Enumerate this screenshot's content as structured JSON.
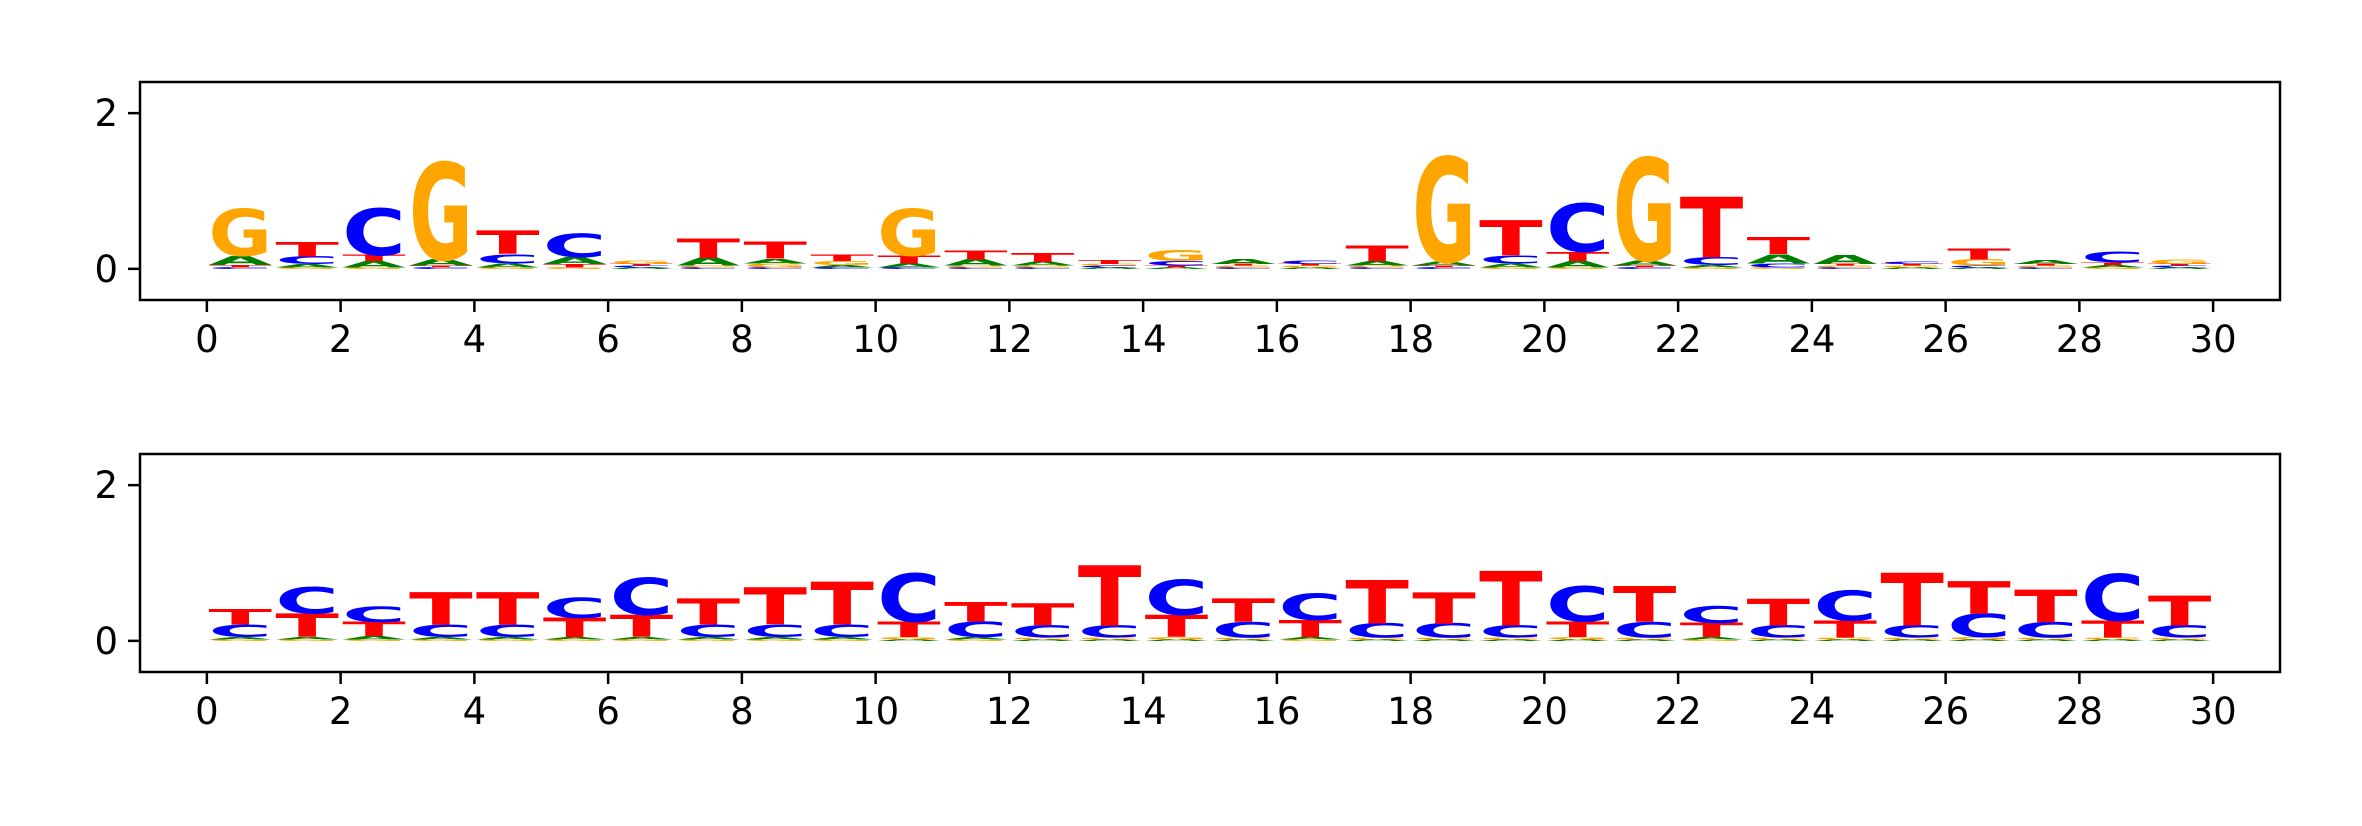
{
  "colors": {
    "A": "#008000",
    "C": "#0000ff",
    "G": "#ffa500",
    "T": "#ff0000"
  },
  "chart_data": [
    {
      "type": "sequence-logo",
      "xlim": [
        -1,
        31
      ],
      "ylim": [
        -0.4,
        2.4
      ],
      "xticks": [
        "0",
        "2",
        "4",
        "6",
        "8",
        "10",
        "12",
        "14",
        "16",
        "18",
        "20",
        "22",
        "24",
        "26",
        "28",
        "30"
      ],
      "yticks": [
        "0",
        "2"
      ],
      "grid": false,
      "positions": [
        {
          "A": 0.12,
          "C": 0.02,
          "G": 0.6,
          "T": 0.03
        },
        {
          "A": 0.04,
          "C": 0.1,
          "G": 0.02,
          "T": 0.18
        },
        {
          "A": 0.08,
          "C": 0.6,
          "G": 0.02,
          "T": 0.08
        },
        {
          "A": 0.08,
          "C": 0.02,
          "G": 1.25,
          "T": 0.02
        },
        {
          "A": 0.05,
          "C": 0.12,
          "G": 0.02,
          "T": 0.3
        },
        {
          "A": 0.09,
          "C": 0.3,
          "G": 0.02,
          "T": 0.04
        },
        {
          "A": 0.02,
          "C": 0.02,
          "G": 0.04,
          "T": 0.02
        },
        {
          "A": 0.1,
          "C": 0.02,
          "G": 0.02,
          "T": 0.25
        },
        {
          "A": 0.06,
          "C": 0.02,
          "G": 0.05,
          "T": 0.22
        },
        {
          "A": 0.03,
          "C": 0.02,
          "G": 0.05,
          "T": 0.08
        },
        {
          "A": 0.05,
          "C": 0.02,
          "G": 0.6,
          "T": 0.1
        },
        {
          "A": 0.08,
          "C": 0.02,
          "G": 0.02,
          "T": 0.12
        },
        {
          "A": 0.05,
          "C": 0.02,
          "G": 0.02,
          "T": 0.12
        },
        {
          "A": 0.02,
          "C": 0.02,
          "G": 0.02,
          "T": 0.05
        },
        {
          "A": 0.02,
          "C": 0.06,
          "G": 0.14,
          "T": 0.02
        },
        {
          "A": 0.07,
          "C": 0.02,
          "G": 0.02,
          "T": 0.02
        },
        {
          "A": 0.02,
          "C": 0.04,
          "G": 0.02,
          "T": 0.02
        },
        {
          "A": 0.06,
          "C": 0.02,
          "G": 0.02,
          "T": 0.2
        },
        {
          "A": 0.05,
          "C": 0.02,
          "G": 1.35,
          "T": 0.02
        },
        {
          "A": 0.05,
          "C": 0.1,
          "G": 0.02,
          "T": 0.45
        },
        {
          "A": 0.08,
          "C": 0.62,
          "G": 0.02,
          "T": 0.12
        },
        {
          "A": 0.07,
          "C": 0.02,
          "G": 1.32,
          "T": 0.02
        },
        {
          "A": 0.03,
          "C": 0.1,
          "G": 0.02,
          "T": 0.78
        },
        {
          "A": 0.12,
          "C": 0.05,
          "G": 0.02,
          "T": 0.22
        },
        {
          "A": 0.12,
          "C": 0.02,
          "G": 0.02,
          "T": 0.02
        },
        {
          "A": 0.02,
          "C": 0.03,
          "G": 0.02,
          "T": 0.02
        },
        {
          "A": 0.02,
          "C": 0.02,
          "G": 0.08,
          "T": 0.14
        },
        {
          "A": 0.05,
          "C": 0.02,
          "G": 0.02,
          "T": 0.02
        },
        {
          "A": 0.03,
          "C": 0.14,
          "G": 0.02,
          "T": 0.03
        },
        {
          "A": 0.02,
          "C": 0.02,
          "G": 0.06,
          "T": 0.02
        }
      ]
    },
    {
      "type": "sequence-logo",
      "xlim": [
        -1,
        31
      ],
      "ylim": [
        -0.4,
        2.4
      ],
      "xticks": [
        "0",
        "2",
        "4",
        "6",
        "8",
        "10",
        "12",
        "14",
        "16",
        "18",
        "20",
        "22",
        "24",
        "26",
        "28",
        "30"
      ],
      "yticks": [
        "0",
        "2"
      ],
      "grid": false,
      "positions": [
        {
          "A": 0.03,
          "C": 0.16,
          "G": 0.02,
          "T": 0.2
        },
        {
          "A": 0.03,
          "C": 0.34,
          "G": 0.02,
          "T": 0.3
        },
        {
          "A": 0.04,
          "C": 0.2,
          "G": 0.02,
          "T": 0.18
        },
        {
          "A": 0.03,
          "C": 0.16,
          "G": 0.02,
          "T": 0.42
        },
        {
          "A": 0.03,
          "C": 0.16,
          "G": 0.02,
          "T": 0.42
        },
        {
          "A": 0.03,
          "C": 0.26,
          "G": 0.02,
          "T": 0.25
        },
        {
          "A": 0.03,
          "C": 0.48,
          "G": 0.02,
          "T": 0.28
        },
        {
          "A": 0.03,
          "C": 0.16,
          "G": 0.02,
          "T": 0.33
        },
        {
          "A": 0.03,
          "C": 0.16,
          "G": 0.02,
          "T": 0.48
        },
        {
          "A": 0.03,
          "C": 0.16,
          "G": 0.02,
          "T": 0.55
        },
        {
          "A": 0.02,
          "C": 0.62,
          "G": 0.03,
          "T": 0.2
        },
        {
          "A": 0.03,
          "C": 0.2,
          "G": 0.02,
          "T": 0.25
        },
        {
          "A": 0.02,
          "C": 0.16,
          "G": 0.02,
          "T": 0.28
        },
        {
          "A": 0.02,
          "C": 0.16,
          "G": 0.02,
          "T": 0.78
        },
        {
          "A": 0.02,
          "C": 0.45,
          "G": 0.03,
          "T": 0.28
        },
        {
          "A": 0.02,
          "C": 0.2,
          "G": 0.02,
          "T": 0.3
        },
        {
          "A": 0.03,
          "C": 0.34,
          "G": 0.02,
          "T": 0.22
        },
        {
          "A": 0.02,
          "C": 0.18,
          "G": 0.02,
          "T": 0.56
        },
        {
          "A": 0.02,
          "C": 0.18,
          "G": 0.02,
          "T": 0.4
        },
        {
          "A": 0.02,
          "C": 0.16,
          "G": 0.02,
          "T": 0.7
        },
        {
          "A": 0.02,
          "C": 0.45,
          "G": 0.03,
          "T": 0.2
        },
        {
          "A": 0.02,
          "C": 0.2,
          "G": 0.02,
          "T": 0.46
        },
        {
          "A": 0.03,
          "C": 0.22,
          "G": 0.02,
          "T": 0.18
        },
        {
          "A": 0.02,
          "C": 0.16,
          "G": 0.02,
          "T": 0.34
        },
        {
          "A": 0.02,
          "C": 0.38,
          "G": 0.02,
          "T": 0.22
        },
        {
          "A": 0.02,
          "C": 0.16,
          "G": 0.02,
          "T": 0.68
        },
        {
          "A": 0.02,
          "C": 0.3,
          "G": 0.03,
          "T": 0.42
        },
        {
          "A": 0.02,
          "C": 0.2,
          "G": 0.02,
          "T": 0.42
        },
        {
          "A": 0.02,
          "C": 0.6,
          "G": 0.02,
          "T": 0.22
        },
        {
          "A": 0.02,
          "C": 0.16,
          "G": 0.02,
          "T": 0.38
        }
      ]
    }
  ]
}
